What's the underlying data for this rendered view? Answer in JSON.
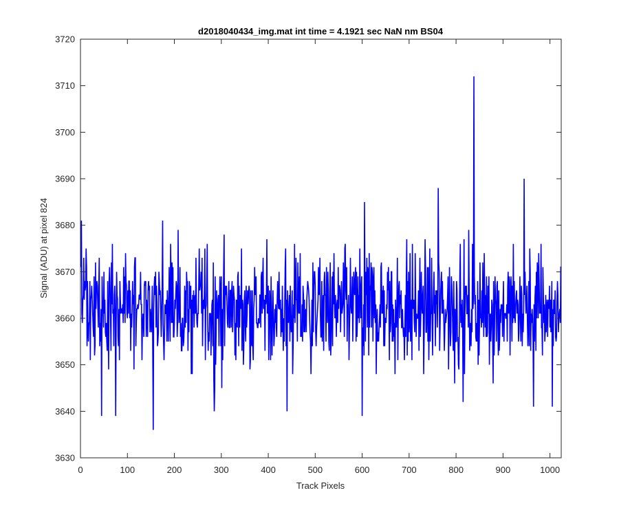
{
  "figure": {
    "background": "#ffffff"
  },
  "chart_data": {
    "type": "line",
    "title": "d2018040434_img.mat int time = 4.1921 sec  NaN nm BS04",
    "xlabel": "Track Pixels",
    "ylabel": "Signal (ADU) at pixel 824",
    "xlim": [
      0,
      1024
    ],
    "ylim": [
      3630,
      3720
    ],
    "xticks": [
      0,
      100,
      200,
      300,
      400,
      500,
      600,
      700,
      800,
      900,
      1000
    ],
    "yticks": [
      3630,
      3640,
      3650,
      3660,
      3670,
      3680,
      3690,
      3700,
      3710,
      3720
    ],
    "grid": false,
    "legend": "none",
    "series": [
      {
        "color": "#0000ff",
        "description": "noisy signal around ~3662 ADU, 1024 points",
        "x_start": 1,
        "x_end": 1024,
        "baseline": 3662,
        "typical_range": [
          3645,
          3680
        ],
        "notable_points": [
          {
            "x": 2,
            "y": 3681
          },
          {
            "x": 45,
            "y": 3639
          },
          {
            "x": 75,
            "y": 3639
          },
          {
            "x": 155,
            "y": 3636
          },
          {
            "x": 175,
            "y": 3681
          },
          {
            "x": 285,
            "y": 3640
          },
          {
            "x": 440,
            "y": 3640
          },
          {
            "x": 600,
            "y": 3639
          },
          {
            "x": 605,
            "y": 3685
          },
          {
            "x": 762,
            "y": 3688
          },
          {
            "x": 815,
            "y": 3642
          },
          {
            "x": 838,
            "y": 3712
          },
          {
            "x": 945,
            "y": 3690
          },
          {
            "x": 965,
            "y": 3641
          },
          {
            "x": 1005,
            "y": 3641
          }
        ]
      }
    ]
  }
}
